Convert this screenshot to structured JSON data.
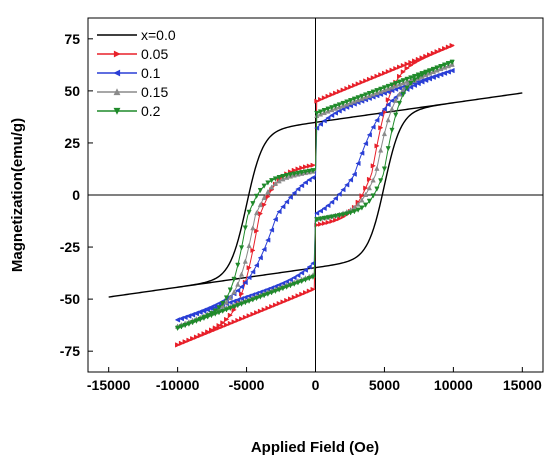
{
  "chart_data": {
    "type": "line",
    "title": "",
    "xlabel": "Applied Field (Oe)",
    "ylabel": "Magnetization(emu/g)",
    "xlim": [
      -16500,
      16500
    ],
    "ylim": [
      -85,
      85
    ],
    "xticks": [
      -15000,
      -10000,
      -5000,
      0,
      5000,
      10000,
      15000
    ],
    "yticks": [
      -75,
      -50,
      -25,
      0,
      25,
      50,
      75
    ],
    "xtick_labels": [
      "-15000",
      "-10000",
      "-5000",
      "0",
      "5000",
      "10000",
      "15000"
    ],
    "ytick_labels": [
      "-75",
      "-50",
      "-25",
      "0",
      "25",
      "50",
      "75"
    ],
    "grid": false,
    "zero_lines": true,
    "legend_position": "top-left",
    "series": [
      {
        "name": "x=0.0",
        "color": "#000000",
        "marker": "none",
        "hmax": 15000,
        "ms": 49,
        "hc": 5000,
        "mr": 25,
        "w": 1200,
        "jump": 0,
        "slope": 0.00094
      },
      {
        "name": "0.05",
        "color": "#e8202a",
        "marker": "triangle-right",
        "hmax": 10000,
        "ms": 72,
        "hc": 4100,
        "mr": 44,
        "w": 1350,
        "jump": 34,
        "slope": 0.0027
      },
      {
        "name": "0.1",
        "color": "#2a3fd6",
        "marker": "triangle-left",
        "hmax": 10000,
        "ms": 60,
        "hc": 2600,
        "mr": 37,
        "w": 2200,
        "jump": 31,
        "slope": 0.0022
      },
      {
        "name": "0.15",
        "color": "#8a8a8a",
        "marker": "triangle-up",
        "hmax": 10000,
        "ms": 63,
        "hc": 4400,
        "mr": 38,
        "w": 1250,
        "jump": 33,
        "slope": 0.0025
      },
      {
        "name": "0.2",
        "color": "#1f8a2a",
        "marker": "triangle-down",
        "hmax": 10000,
        "ms": 64,
        "hc": 5000,
        "mr": 40,
        "w": 1150,
        "jump": 34,
        "slope": 0.0025
      }
    ]
  }
}
